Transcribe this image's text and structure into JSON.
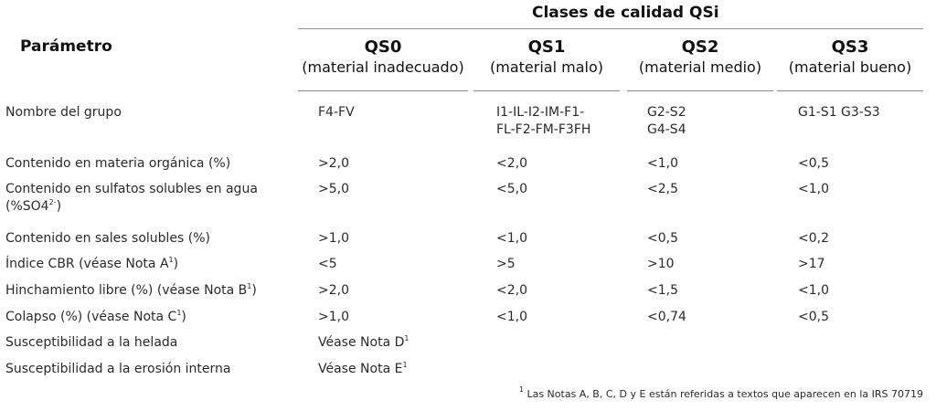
{
  "header": {
    "group_title": "Clases de calidad QSi",
    "param_label": "Parámetro",
    "columns": [
      {
        "code": "QS0",
        "desc": "(material inadecuado)"
      },
      {
        "code": "QS1",
        "desc": "(material malo)"
      },
      {
        "code": "QS2",
        "desc": "(material medio)"
      },
      {
        "code": "QS3",
        "desc": "(material bueno)"
      }
    ]
  },
  "rows": [
    {
      "param": "Nombre del grupo",
      "values": [
        "F4-FV",
        "I1-IL-I2-IM-F1-\nFL-F2-FM-F3FH",
        "G2-S2\nG4-S4",
        "G1-S1 G3-S3"
      ]
    },
    {
      "param": "Contenido en materia orgánica (%)",
      "values": [
        ">2,0",
        "<2,0",
        "<1,0",
        "<0,5"
      ]
    },
    {
      "param": "Contenido en sulfatos solubles en agua",
      "param2": "(%SO4",
      "param_sup": "2-",
      "param_end": ")",
      "values": [
        ">5,0",
        "<5,0",
        "<2,5",
        "<1,0"
      ]
    },
    {
      "param": "Contenido en sales solubles (%)",
      "values": [
        ">1,0",
        "<1,0",
        "<0,5",
        "<0,2"
      ]
    },
    {
      "param": "Índice CBR (véase Nota A",
      "param_sup": "1",
      "param_end": ")",
      "values": [
        "<5",
        ">5",
        ">10",
        ">17"
      ]
    },
    {
      "param": "Hinchamiento libre (%) (véase Nota B",
      "param_sup": "1",
      "param_end": ")",
      "values": [
        ">2,0",
        "<2,0",
        "<1,5",
        "<1,0"
      ]
    },
    {
      "param": "Colapso (%) (véase Nota C",
      "param_sup": "1",
      "param_end": ")",
      "values": [
        ">1,0",
        "<1,0",
        "<0,74",
        "<0,5"
      ]
    },
    {
      "param": "Susceptibilidad a la helada",
      "values": [
        "Véase Nota D",
        "",
        "",
        ""
      ],
      "value_sup": "1"
    },
    {
      "param": "Susceptibilidad a la erosión interna",
      "values": [
        "Véase Nota E",
        "",
        "",
        ""
      ],
      "value_sup": "1"
    }
  ],
  "footnote": {
    "mark": "1",
    "text": "Las Notas A, B, C, D y E están referidas a textos que aparecen en la IRS 70719"
  }
}
